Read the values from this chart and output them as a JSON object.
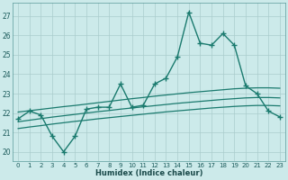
{
  "xlabel": "Humidex (Indice chaleur)",
  "bg_color": "#cceaea",
  "grid_color": "#aacccc",
  "line_color": "#1a7a6e",
  "xlim": [
    -0.5,
    23.5
  ],
  "ylim": [
    19.5,
    27.7
  ],
  "yticks": [
    20,
    21,
    22,
    23,
    24,
    25,
    26,
    27
  ],
  "xticks": [
    0,
    1,
    2,
    3,
    4,
    5,
    6,
    7,
    8,
    9,
    10,
    11,
    12,
    13,
    14,
    15,
    16,
    17,
    18,
    19,
    20,
    21,
    22,
    23
  ],
  "series1_x": [
    0,
    1,
    2,
    3,
    4,
    5,
    6,
    7,
    8,
    9,
    10,
    11,
    12,
    13,
    14,
    15,
    16,
    17,
    18,
    19,
    20,
    21,
    22,
    23
  ],
  "series1_y": [
    21.7,
    22.1,
    21.9,
    20.8,
    20.0,
    20.8,
    22.2,
    22.3,
    22.3,
    23.5,
    22.3,
    22.4,
    23.5,
    23.8,
    24.9,
    27.2,
    25.6,
    25.5,
    26.1,
    25.5,
    23.4,
    23.0,
    22.1,
    21.8
  ],
  "series2_x": [
    0,
    1,
    2,
    3,
    4,
    5,
    6,
    7,
    8,
    9,
    10,
    11,
    12,
    13,
    14,
    15,
    16,
    17,
    18,
    19,
    20,
    21,
    22,
    23
  ],
  "series2_y": [
    22.05,
    22.12,
    22.19,
    22.26,
    22.33,
    22.39,
    22.46,
    22.53,
    22.6,
    22.67,
    22.74,
    22.8,
    22.87,
    22.93,
    22.99,
    23.05,
    23.1,
    23.15,
    23.2,
    23.25,
    23.28,
    23.3,
    23.3,
    23.28
  ],
  "series3_x": [
    0,
    1,
    2,
    3,
    4,
    5,
    6,
    7,
    8,
    9,
    10,
    11,
    12,
    13,
    14,
    15,
    16,
    17,
    18,
    19,
    20,
    21,
    22,
    23
  ],
  "series3_y": [
    21.55,
    21.63,
    21.71,
    21.79,
    21.86,
    21.93,
    22.0,
    22.07,
    22.13,
    22.2,
    22.26,
    22.32,
    22.38,
    22.44,
    22.5,
    22.55,
    22.6,
    22.65,
    22.7,
    22.74,
    22.78,
    22.8,
    22.8,
    22.78
  ],
  "series4_x": [
    0,
    1,
    2,
    3,
    4,
    5,
    6,
    7,
    8,
    9,
    10,
    11,
    12,
    13,
    14,
    15,
    16,
    17,
    18,
    19,
    20,
    21,
    22,
    23
  ],
  "series4_y": [
    21.2,
    21.28,
    21.35,
    21.43,
    21.5,
    21.57,
    21.63,
    21.7,
    21.76,
    21.82,
    21.88,
    21.94,
    22.0,
    22.06,
    22.11,
    22.16,
    22.21,
    22.26,
    22.3,
    22.34,
    22.37,
    22.39,
    22.39,
    22.37
  ]
}
